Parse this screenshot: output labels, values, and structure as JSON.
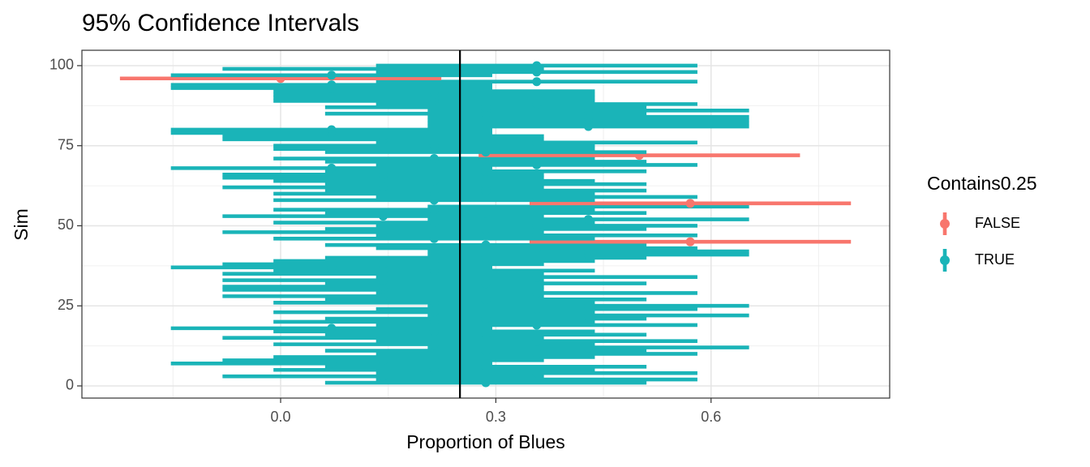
{
  "chart_data": {
    "type": "errorbar",
    "title": "95% Confidence Intervals",
    "x_label": "Proportion of Blues",
    "y_label": "Sim",
    "legend_title": "Contains0.25",
    "groups": [
      {
        "name": "FALSE",
        "color": "#F8766D"
      },
      {
        "name": "TRUE",
        "color": "#1AB4B8"
      }
    ],
    "sim": [
      1,
      2,
      3,
      4,
      5,
      6,
      7,
      8,
      9,
      10,
      11,
      12,
      13,
      14,
      15,
      16,
      17,
      18,
      19,
      20,
      21,
      22,
      23,
      24,
      25,
      26,
      27,
      28,
      29,
      30,
      31,
      32,
      33,
      34,
      35,
      36,
      37,
      38,
      39,
      40,
      41,
      42,
      43,
      44,
      45,
      46,
      47,
      48,
      49,
      50,
      51,
      52,
      53,
      54,
      55,
      56,
      57,
      58,
      59,
      60,
      61,
      62,
      63,
      64,
      65,
      66,
      67,
      68,
      69,
      70,
      71,
      72,
      73,
      74,
      75,
      76,
      77,
      78,
      79,
      80,
      81,
      82,
      83,
      84,
      85,
      86,
      87,
      88,
      89,
      90,
      91,
      92,
      93,
      94,
      95,
      96,
      97,
      98,
      99,
      100
    ],
    "estimate": [
      0.286,
      0.357,
      0.143,
      0.357,
      0.214,
      0.286,
      0.071,
      0.143,
      0.214,
      0.357,
      0.286,
      0.429,
      0.214,
      0.357,
      0.143,
      0.286,
      0.214,
      0.071,
      0.357,
      0.214,
      0.286,
      0.429,
      0.214,
      0.357,
      0.429,
      0.214,
      0.286,
      0.143,
      0.357,
      0.143,
      0.143,
      0.286,
      0.143,
      0.357,
      0.143,
      0.214,
      0.071,
      0.143,
      0.214,
      0.286,
      0.429,
      0.429,
      0.357,
      0.286,
      0.571,
      0.214,
      0.357,
      0.143,
      0.286,
      0.357,
      0.214,
      0.429,
      0.143,
      0.286,
      0.214,
      0.429,
      0.571,
      0.214,
      0.357,
      0.214,
      0.286,
      0.143,
      0.286,
      0.214,
      0.143,
      0.143,
      0.286,
      0.071,
      0.357,
      0.286,
      0.214,
      0.5,
      0.286,
      0.214,
      0.214,
      0.357,
      0.143,
      0.143,
      0.071,
      0.071,
      0.429,
      0.429,
      0.429,
      0.429,
      0.286,
      0.429,
      0.286,
      0.357,
      0.214,
      0.214,
      0.214,
      0.214,
      0.071,
      0.071,
      0.357,
      0,
      0.071,
      0.357,
      0.143,
      0.357
    ],
    "lower": [
      0.062,
      0.133,
      -0.081,
      0.133,
      -0.01,
      0.062,
      -0.153,
      -0.081,
      -0.01,
      0.133,
      0.062,
      0.205,
      -0.01,
      0.133,
      -0.081,
      0.062,
      -0.01,
      -0.153,
      0.133,
      -0.01,
      0.062,
      0.205,
      -0.01,
      0.133,
      0.205,
      -0.01,
      0.062,
      -0.081,
      0.133,
      -0.081,
      -0.081,
      0.062,
      -0.081,
      0.133,
      -0.081,
      -0.01,
      -0.153,
      -0.081,
      -0.01,
      0.062,
      0.205,
      0.205,
      0.133,
      0.062,
      0.347,
      -0.01,
      0.133,
      -0.081,
      0.062,
      0.133,
      -0.01,
      0.205,
      -0.081,
      0.062,
      -0.01,
      0.205,
      0.347,
      -0.01,
      0.133,
      -0.01,
      0.062,
      -0.081,
      0.062,
      -0.01,
      -0.081,
      -0.081,
      0.062,
      -0.153,
      0.133,
      0.062,
      -0.01,
      0.276,
      0.062,
      -0.01,
      -0.01,
      0.133,
      -0.081,
      -0.081,
      -0.153,
      -0.153,
      0.205,
      0.205,
      0.205,
      0.205,
      0.062,
      0.205,
      0.062,
      0.133,
      -0.01,
      -0.01,
      -0.01,
      -0.01,
      -0.153,
      -0.153,
      0.133,
      -0.224,
      -0.153,
      0.133,
      -0.081,
      0.133
    ],
    "upper": [
      0.51,
      0.581,
      0.367,
      0.581,
      0.438,
      0.51,
      0.295,
      0.367,
      0.438,
      0.581,
      0.51,
      0.653,
      0.438,
      0.581,
      0.367,
      0.51,
      0.438,
      0.295,
      0.581,
      0.438,
      0.51,
      0.653,
      0.438,
      0.581,
      0.653,
      0.438,
      0.51,
      0.367,
      0.581,
      0.367,
      0.367,
      0.51,
      0.367,
      0.581,
      0.367,
      0.438,
      0.295,
      0.367,
      0.438,
      0.51,
      0.653,
      0.653,
      0.581,
      0.51,
      0.795,
      0.438,
      0.581,
      0.367,
      0.51,
      0.581,
      0.438,
      0.653,
      0.367,
      0.51,
      0.438,
      0.653,
      0.795,
      0.438,
      0.581,
      0.438,
      0.51,
      0.367,
      0.51,
      0.438,
      0.367,
      0.367,
      0.51,
      0.295,
      0.581,
      0.51,
      0.438,
      0.724,
      0.51,
      0.438,
      0.438,
      0.581,
      0.367,
      0.367,
      0.295,
      0.295,
      0.653,
      0.653,
      0.653,
      0.653,
      0.51,
      0.653,
      0.51,
      0.581,
      0.438,
      0.438,
      0.438,
      0.438,
      0.295,
      0.295,
      0.581,
      0.224,
      0.295,
      0.581,
      0.367,
      0.581
    ],
    "contains": [
      true,
      true,
      true,
      true,
      true,
      true,
      true,
      true,
      true,
      true,
      true,
      true,
      true,
      true,
      true,
      true,
      true,
      true,
      true,
      true,
      true,
      true,
      true,
      true,
      true,
      true,
      true,
      true,
      true,
      true,
      true,
      true,
      true,
      true,
      true,
      true,
      true,
      true,
      true,
      true,
      true,
      true,
      true,
      true,
      false,
      true,
      true,
      true,
      true,
      true,
      true,
      true,
      true,
      true,
      true,
      true,
      false,
      true,
      true,
      true,
      true,
      true,
      true,
      true,
      true,
      true,
      true,
      true,
      true,
      true,
      true,
      false,
      true,
      true,
      true,
      true,
      true,
      true,
      true,
      true,
      true,
      true,
      true,
      true,
      true,
      true,
      true,
      true,
      true,
      true,
      true,
      true,
      true,
      true,
      true,
      false,
      true,
      true,
      true,
      true
    ],
    "reference_line": 0.25,
    "xlim": [
      -0.277,
      0.849
    ],
    "ylim": [
      -3.8,
      104.8
    ],
    "xticks": [
      {
        "value": 0,
        "label": "0.0"
      },
      {
        "value": 0.3,
        "label": "0.3"
      },
      {
        "value": 0.6,
        "label": "0.6"
      }
    ],
    "yticks": [
      0,
      25,
      50,
      75,
      100
    ],
    "x_minor_grid": [
      -0.15,
      0.15,
      0.45,
      0.75
    ],
    "y_minor_grid": [
      12.5,
      37.5,
      62.5,
      87.5
    ],
    "grid": true
  }
}
